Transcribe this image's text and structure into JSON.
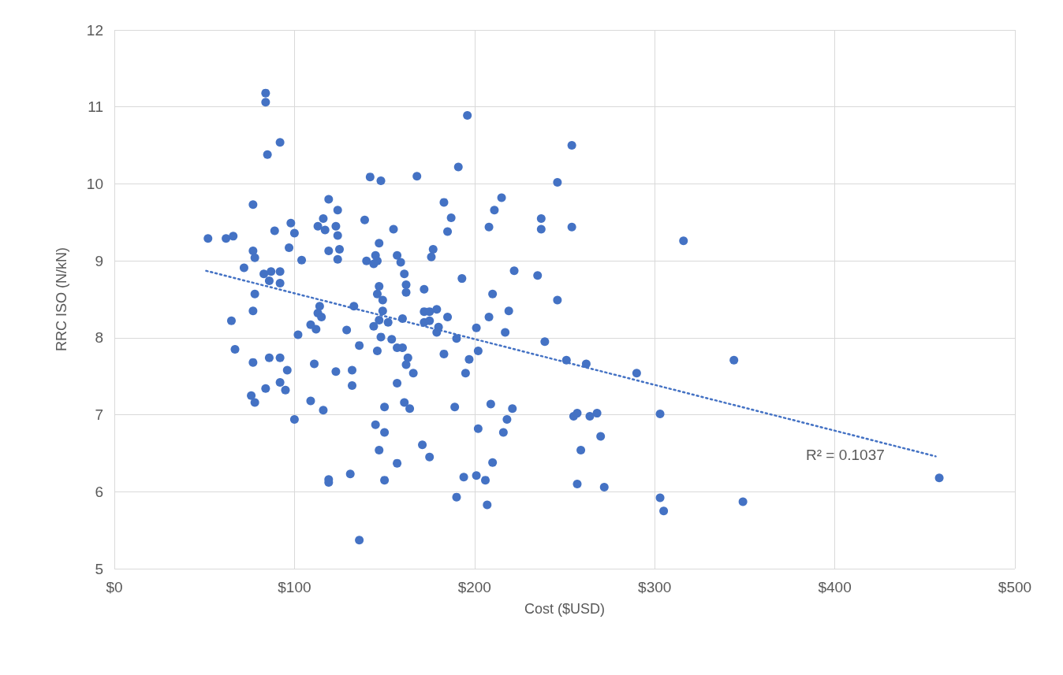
{
  "chart_data": {
    "type": "scatter",
    "xlabel": "Cost ($USD)",
    "ylabel": "RRC ISO (N/kN)",
    "xlim": [
      0,
      500
    ],
    "xticks": [
      {
        "value": 0,
        "label": "$0"
      },
      {
        "value": 100,
        "label": "$100"
      },
      {
        "value": 200,
        "label": "$200"
      },
      {
        "value": 300,
        "label": "$300"
      },
      {
        "value": 400,
        "label": "$400"
      },
      {
        "value": 500,
        "label": "$500"
      }
    ],
    "ylim": [
      5,
      12
    ],
    "yticks": [
      5,
      6,
      7,
      8,
      9,
      10,
      11,
      12
    ],
    "grid": true,
    "annotations": [
      "R² = 0.1037"
    ],
    "series": [
      {
        "marker": "circle",
        "color": "#4472c4",
        "x": [
          52,
          62,
          66,
          65,
          67,
          72,
          77,
          77,
          78,
          78,
          77,
          77,
          76,
          78,
          84,
          84,
          85,
          92,
          89,
          83,
          87,
          92,
          86,
          92,
          86,
          92,
          84,
          92,
          95,
          96,
          98,
          100,
          97,
          104,
          102,
          100,
          109,
          112,
          114,
          113,
          115,
          111,
          109,
          116,
          116,
          113,
          117,
          119,
          119,
          123,
          124,
          124,
          125,
          124,
          119,
          119,
          123,
          129,
          133,
          132,
          132,
          131,
          136,
          136,
          139,
          142,
          140,
          145,
          146,
          144,
          147,
          148,
          147,
          146,
          149,
          149,
          147,
          144,
          148,
          146,
          145,
          147,
          150,
          150,
          150,
          152,
          154,
          155,
          157,
          159,
          161,
          162,
          162,
          157,
          160,
          160,
          163,
          162,
          166,
          157,
          161,
          164,
          157,
          168,
          172,
          172,
          175,
          172,
          175,
          171,
          175,
          177,
          176,
          179,
          180,
          179,
          183,
          187,
          185,
          185,
          183,
          189,
          190,
          191,
          196,
          193,
          195,
          197,
          190,
          194,
          201,
          202,
          202,
          201,
          206,
          207,
          208,
          211,
          215,
          210,
          208,
          209,
          210,
          219,
          217,
          222,
          221,
          218,
          216,
          235,
          237,
          237,
          239,
          246,
          246,
          251,
          254,
          254,
          255,
          257,
          264,
          268,
          270,
          259,
          257,
          262,
          272,
          290,
          303,
          303,
          305,
          316,
          344,
          349,
          458
        ],
        "values": [
          9.29,
          9.29,
          9.32,
          8.22,
          7.85,
          8.91,
          9.73,
          9.13,
          9.04,
          8.57,
          8.35,
          7.68,
          7.25,
          7.16,
          11.18,
          11.06,
          10.38,
          10.54,
          9.39,
          8.83,
          8.86,
          8.86,
          8.74,
          8.71,
          7.74,
          7.74,
          7.34,
          7.42,
          7.32,
          7.58,
          9.49,
          9.36,
          9.17,
          9.01,
          8.04,
          6.94,
          8.17,
          8.11,
          8.41,
          8.32,
          8.27,
          7.66,
          7.18,
          7.06,
          9.55,
          9.45,
          9.4,
          9.8,
          9.13,
          9.45,
          9.33,
          9.66,
          9.15,
          9.02,
          6.16,
          6.12,
          7.56,
          8.1,
          8.41,
          7.58,
          7.38,
          6.23,
          7.9,
          5.37,
          9.53,
          10.09,
          9.0,
          9.07,
          9.0,
          8.96,
          9.23,
          10.04,
          8.67,
          8.57,
          8.49,
          8.35,
          8.23,
          8.15,
          8.01,
          7.83,
          6.87,
          6.54,
          7.1,
          6.77,
          6.15,
          8.2,
          7.98,
          9.41,
          9.07,
          8.98,
          8.83,
          8.69,
          8.59,
          7.87,
          7.87,
          8.25,
          7.74,
          7.65,
          7.54,
          7.41,
          7.16,
          7.08,
          6.37,
          10.1,
          8.63,
          8.34,
          8.34,
          8.2,
          8.22,
          6.61,
          6.45,
          9.15,
          9.05,
          8.37,
          8.14,
          8.07,
          9.76,
          9.56,
          9.38,
          8.27,
          7.79,
          7.1,
          7.99,
          10.22,
          10.89,
          8.77,
          7.54,
          7.72,
          5.93,
          6.19,
          8.13,
          7.83,
          6.82,
          6.21,
          6.15,
          5.83,
          9.44,
          9.66,
          9.82,
          8.57,
          8.27,
          7.14,
          6.38,
          8.35,
          8.07,
          8.87,
          7.08,
          6.94,
          6.77,
          8.81,
          9.55,
          9.41,
          7.95,
          10.02,
          8.49,
          7.71,
          10.5,
          9.44,
          6.98,
          7.02,
          6.98,
          7.02,
          6.72,
          6.54,
          6.1,
          7.66,
          6.06,
          7.54,
          7.01,
          5.92,
          5.75,
          9.26,
          7.71,
          5.87,
          6.18
        ]
      },
      {
        "type": "line",
        "marker": "none",
        "color": "#4472c4",
        "line_style": "dotted",
        "x": [
          51,
          456
        ],
        "values": [
          8.87,
          6.46
        ]
      }
    ]
  }
}
